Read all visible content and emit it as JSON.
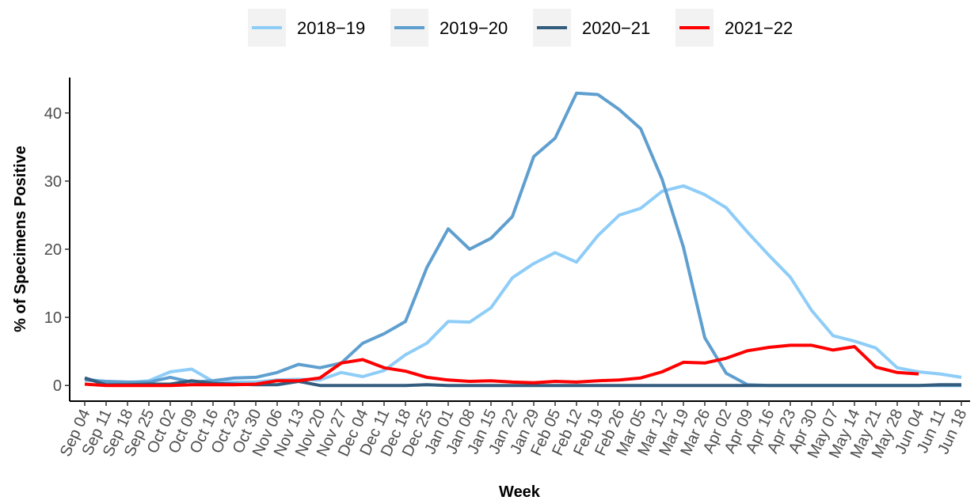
{
  "chart_data": {
    "type": "line",
    "xlabel": "Week",
    "ylabel": "% of Specimens Positive",
    "categories": [
      "Sep 04",
      "Sep 11",
      "Sep 18",
      "Sep 25",
      "Oct 02",
      "Oct 09",
      "Oct 16",
      "Oct 23",
      "Oct 30",
      "Nov 06",
      "Nov 13",
      "Nov 20",
      "Nov 27",
      "Dec 04",
      "Dec 11",
      "Dec 18",
      "Dec 25",
      "Jan 01",
      "Jan 08",
      "Jan 15",
      "Jan 22",
      "Jan 29",
      "Feb 05",
      "Feb 12",
      "Feb 19",
      "Feb 26",
      "Mar 05",
      "Mar 12",
      "Mar 19",
      "Mar 26",
      "Apr 02",
      "Apr 09",
      "Apr 16",
      "Apr 23",
      "Apr 30",
      "May 07",
      "May 14",
      "May 21",
      "May 28",
      "Jun 04",
      "Jun 11",
      "Jun 18"
    ],
    "series": [
      {
        "name": "2018−19",
        "color": "#8ecdf8",
        "values": [
          1.0,
          0.5,
          0.4,
          0.7,
          2.0,
          2.4,
          0.6,
          0.5,
          0.5,
          0.8,
          0.9,
          0.8,
          1.9,
          1.3,
          2.2,
          4.5,
          6.2,
          9.4,
          9.3,
          11.4,
          15.8,
          17.9,
          19.5,
          18.1,
          22.0,
          25.0,
          26.0,
          28.5,
          29.3,
          28.0,
          26.1,
          22.5,
          19.1,
          15.9,
          11.0,
          7.3,
          6.5,
          5.5,
          2.6,
          2.0,
          1.7,
          1.2
        ]
      },
      {
        "name": "2019−20",
        "color": "#5f9fcf",
        "values": [
          0.8,
          0.6,
          0.5,
          0.5,
          1.2,
          0.5,
          0.7,
          1.1,
          1.2,
          1.9,
          3.1,
          2.6,
          3.3,
          6.2,
          7.6,
          9.4,
          17.3,
          23.0,
          20.0,
          21.6,
          24.8,
          33.6,
          36.3,
          42.9,
          42.7,
          40.5,
          37.7,
          30.3,
          20.3,
          7.0,
          1.8,
          0.1,
          0,
          0,
          0,
          0,
          0,
          0,
          0,
          0,
          0,
          0
        ]
      },
      {
        "name": "2020−21",
        "color": "#335c7f",
        "values": [
          1.1,
          0.1,
          0.1,
          0.2,
          0.2,
          0.7,
          0.3,
          0.2,
          0.1,
          0.1,
          0.6,
          0,
          0,
          0,
          0,
          0,
          0.1,
          0,
          0,
          0,
          0,
          0,
          0,
          0,
          0,
          0,
          0,
          0,
          0,
          0,
          0,
          0,
          0,
          0,
          0,
          0,
          0,
          0,
          0,
          0,
          0.1,
          0.1
        ]
      },
      {
        "name": "2021−22",
        "color": "#ff0000",
        "values": [
          0.2,
          0,
          0,
          0,
          0,
          0.1,
          0.1,
          0.1,
          0.2,
          0.7,
          0.7,
          1.1,
          3.3,
          3.8,
          2.6,
          2.1,
          1.2,
          0.8,
          0.6,
          0.7,
          0.5,
          0.4,
          0.6,
          0.5,
          0.7,
          0.8,
          1.1,
          2.0,
          3.4,
          3.3,
          4.0,
          5.1,
          5.6,
          5.9,
          5.9,
          5.2,
          5.7,
          2.7,
          1.9,
          1.7,
          null,
          null
        ]
      }
    ],
    "ylim": [
      -2.3,
      45.2
    ],
    "yticks": [
      0,
      10,
      20,
      30,
      40
    ],
    "grid": false,
    "legend": "top"
  }
}
